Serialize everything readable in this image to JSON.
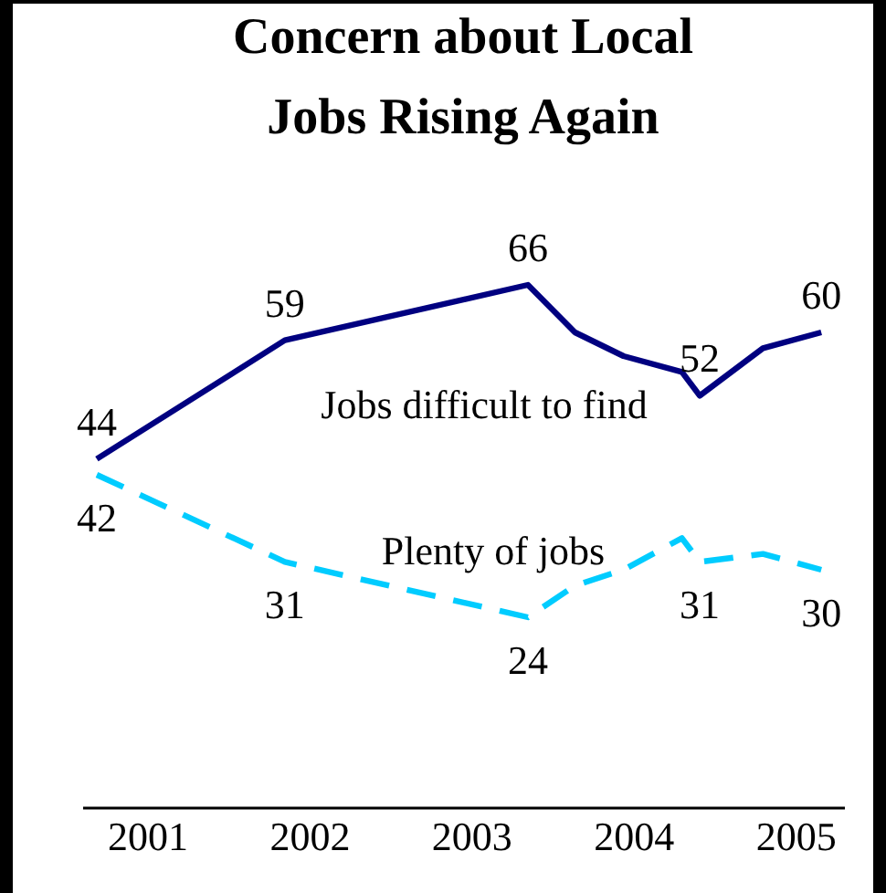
{
  "chart_data": {
    "type": "line",
    "title": "Concern about Local\nJobs Rising Again",
    "x": [
      2000.69,
      2001.85,
      2003.35,
      2003.64,
      2003.94,
      2004.3,
      2004.41,
      2004.8,
      2005.16
    ],
    "xlim": [
      2000.6,
      2005.3
    ],
    "xticks": [
      2001,
      2002,
      2003,
      2004,
      2005
    ],
    "tick_labels": "x",
    "series": [
      {
        "name": "Jobs difficult to find",
        "color": "#000080",
        "line_style": "solid",
        "values": [
          44,
          59,
          66,
          60,
          57,
          55,
          52,
          58,
          60
        ],
        "value_labels": [
          "44",
          "59",
          "66",
          null,
          null,
          null,
          "52",
          null,
          "60"
        ]
      },
      {
        "name": "Plenty of jobs",
        "color": "#00ccff",
        "line_style": "dashed",
        "values": [
          42,
          31,
          24,
          28,
          30,
          34,
          31,
          32,
          30
        ],
        "value_labels": [
          "42",
          "31",
          "24",
          null,
          null,
          null,
          "31",
          null,
          "30"
        ]
      }
    ]
  }
}
